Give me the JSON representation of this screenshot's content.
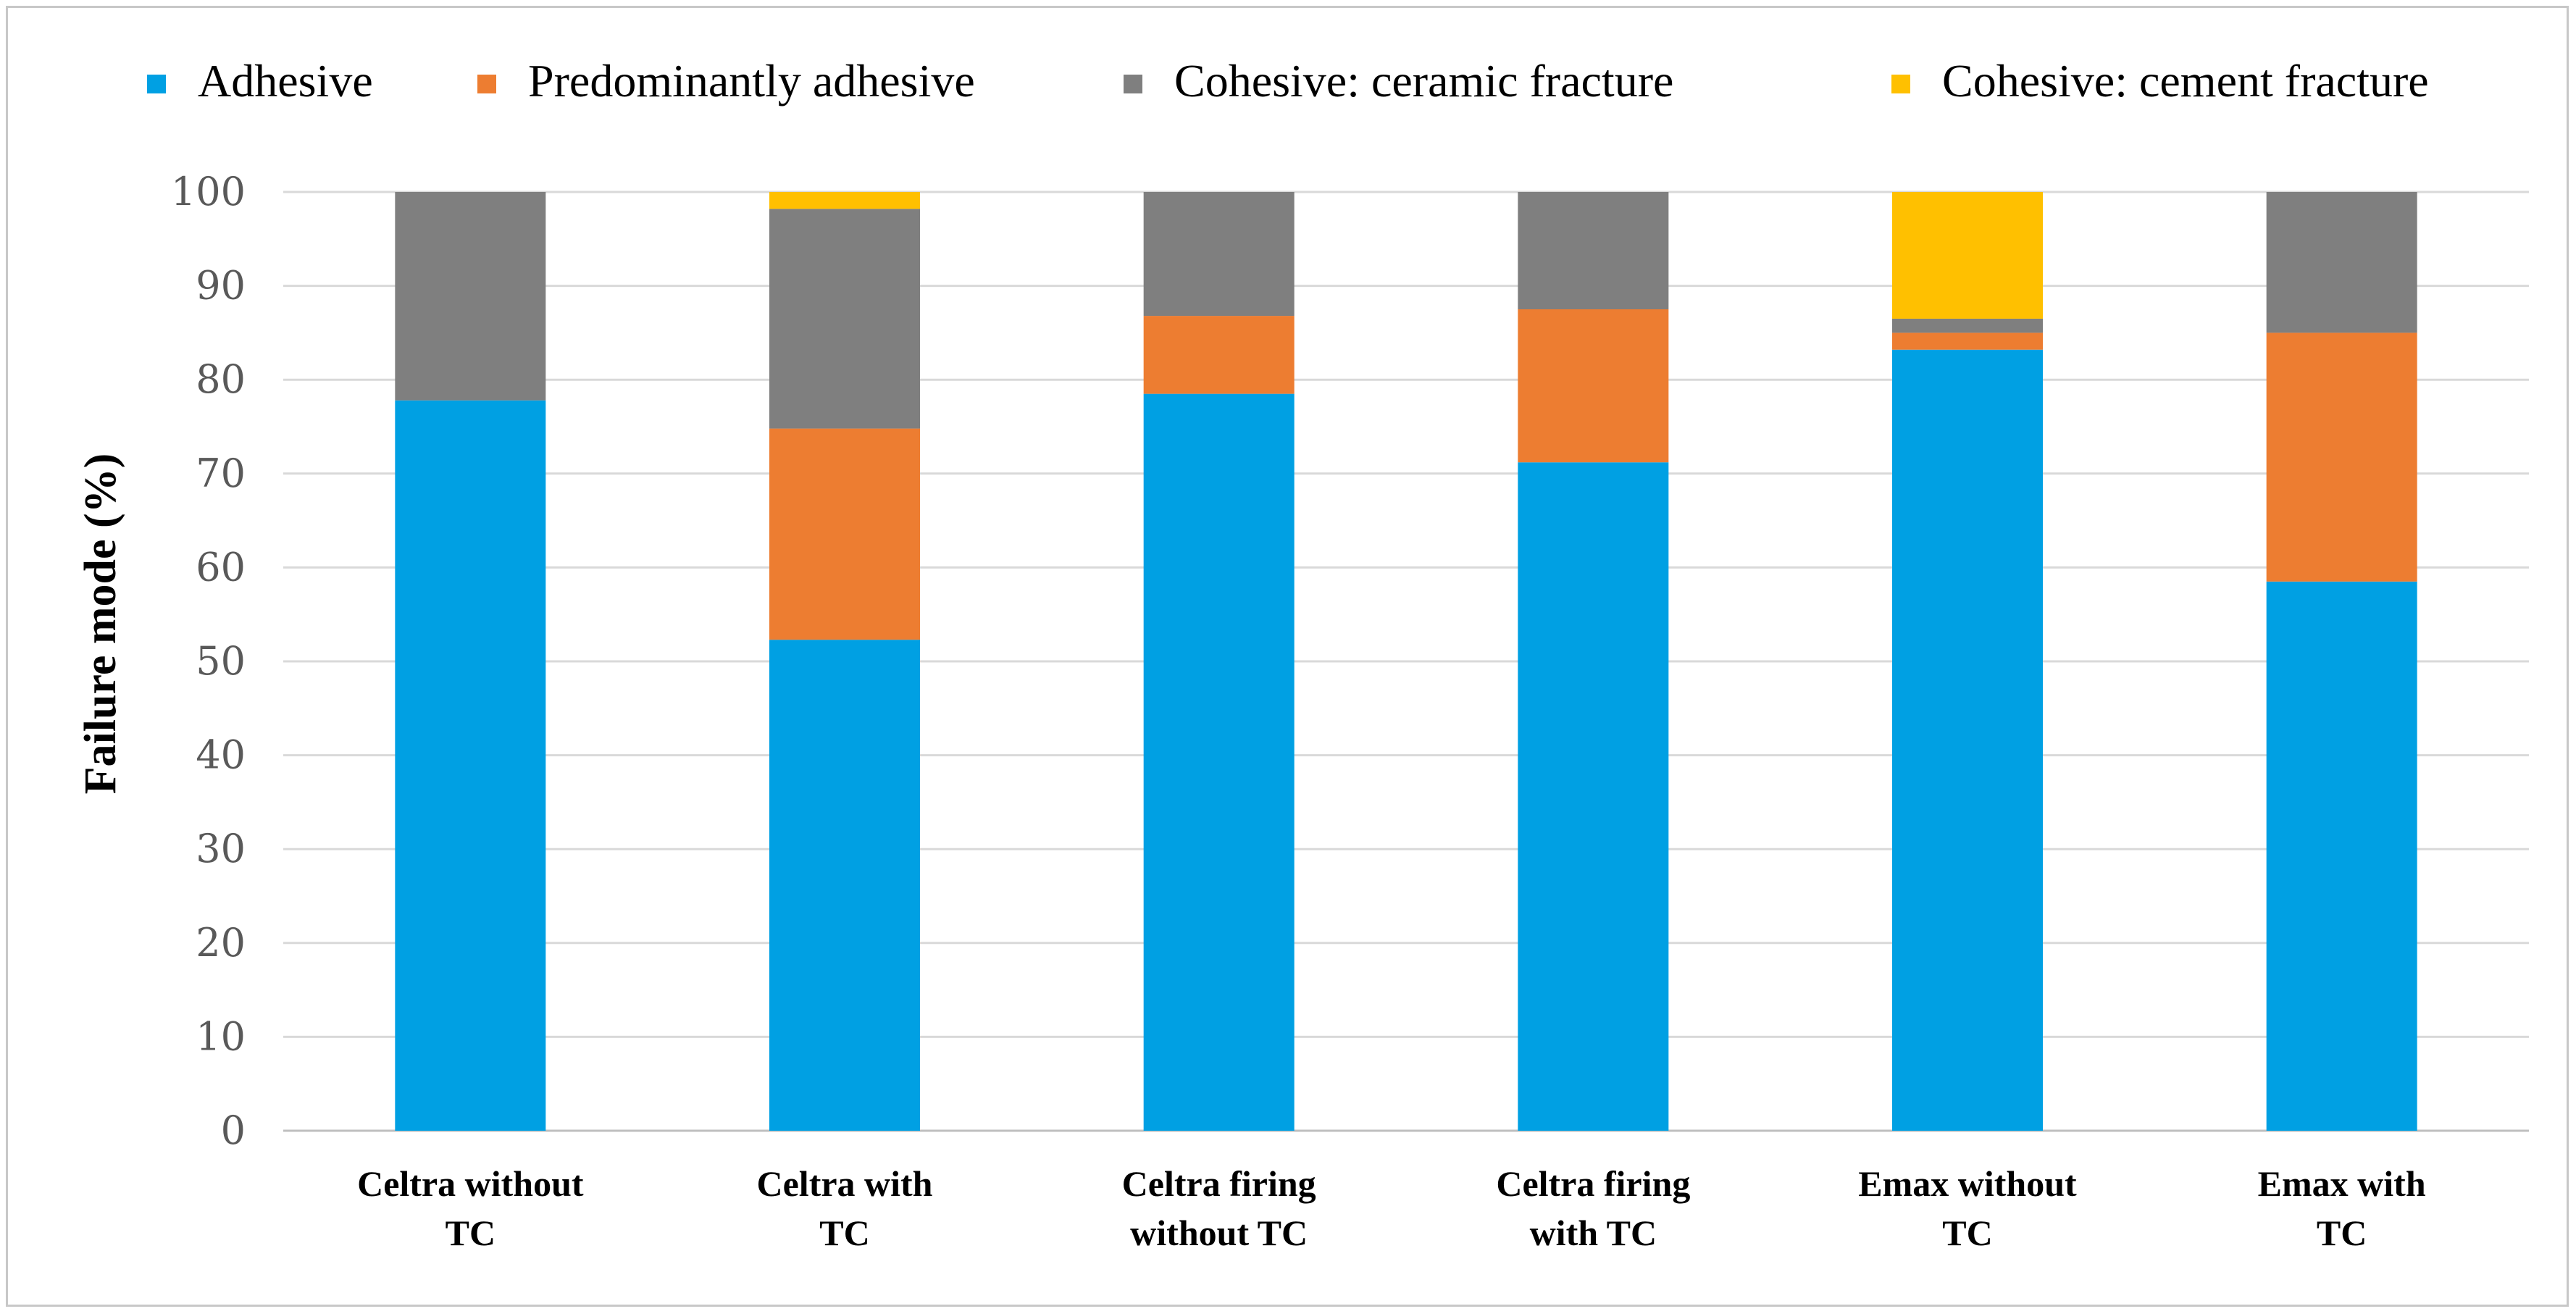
{
  "chart_data": {
    "type": "bar",
    "stacked": true,
    "title": "",
    "xlabel": "",
    "ylabel": "Failure mode (%)",
    "ylim": [
      0,
      100
    ],
    "yticks": [
      0,
      10,
      20,
      30,
      40,
      50,
      60,
      70,
      80,
      90,
      100
    ],
    "grid": true,
    "legend_position": "top",
    "categories": [
      [
        "Celtra without",
        "TC"
      ],
      [
        "Celtra with",
        "TC"
      ],
      [
        "Celtra firing",
        "without TC"
      ],
      [
        "Celtra firing",
        "with TC"
      ],
      [
        "Emax without",
        "TC"
      ],
      [
        "Emax with",
        "TC"
      ]
    ],
    "series": [
      {
        "name": "Adhesive",
        "color": "#00a0e3",
        "values": [
          77.8,
          52.3,
          78.5,
          71.2,
          83.2,
          58.5
        ]
      },
      {
        "name": "Predominantly adhesive",
        "color": "#ed7d31",
        "values": [
          0,
          22.5,
          8.3,
          16.3,
          1.8,
          26.5
        ]
      },
      {
        "name": "Cohesive: ceramic fracture",
        "color": "#7f7f7f",
        "values": [
          22.2,
          23.4,
          13.2,
          12.5,
          1.5,
          15.0
        ]
      },
      {
        "name": "Cohesive: cement fracture",
        "color": "#ffc000",
        "values": [
          0,
          1.8,
          0,
          0,
          13.5,
          0
        ]
      }
    ]
  }
}
